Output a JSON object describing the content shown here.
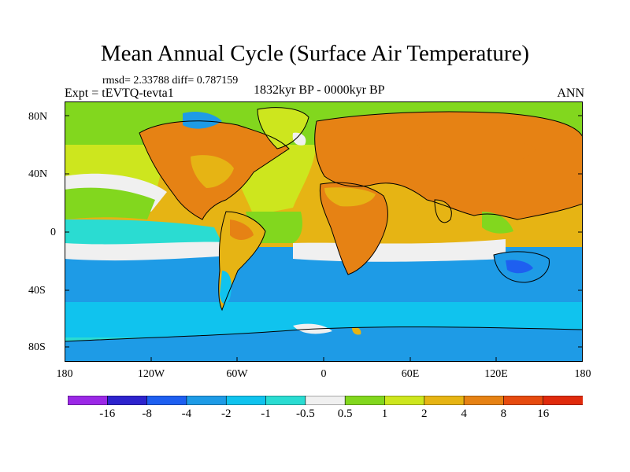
{
  "header": {
    "title": "Mean Annual Cycle (Surface Air Temperature)",
    "stats": "rmsd= 2.33788  diff= 0.787159",
    "experiment": "Expt = tEVTQ-tevta1",
    "period": "1832kyr BP - 0000kyr BP",
    "season": "ANN"
  },
  "axes": {
    "y_ticks": [
      "80N",
      "40N",
      "0",
      "40S",
      "80S"
    ],
    "x_ticks": [
      "180",
      "120W",
      "60W",
      "0",
      "60E",
      "120E",
      "180"
    ]
  },
  "legend": {
    "labels": [
      "-16",
      "-8",
      "-4",
      "-2",
      "-1",
      "-0.5",
      "0.5",
      "1",
      "2",
      "4",
      "8",
      "16"
    ],
    "colors": [
      "#9b28e6",
      "#2d23cd",
      "#1e5ff0",
      "#1e9be6",
      "#10c3ee",
      "#2adcd2",
      "#f0f0f0",
      "#82d71e",
      "#cde61e",
      "#e6b414",
      "#e68214",
      "#e64b0f",
      "#e02a0c"
    ]
  },
  "colors": {
    "land_warm": "#e68214",
    "land_mild": "#e6b414",
    "ocean_cool": "#10c3ee",
    "ocean_mid": "#1e9be6",
    "neutral": "#f0f0f0",
    "green": "#82d71e",
    "yellow_green": "#cde61e"
  }
}
